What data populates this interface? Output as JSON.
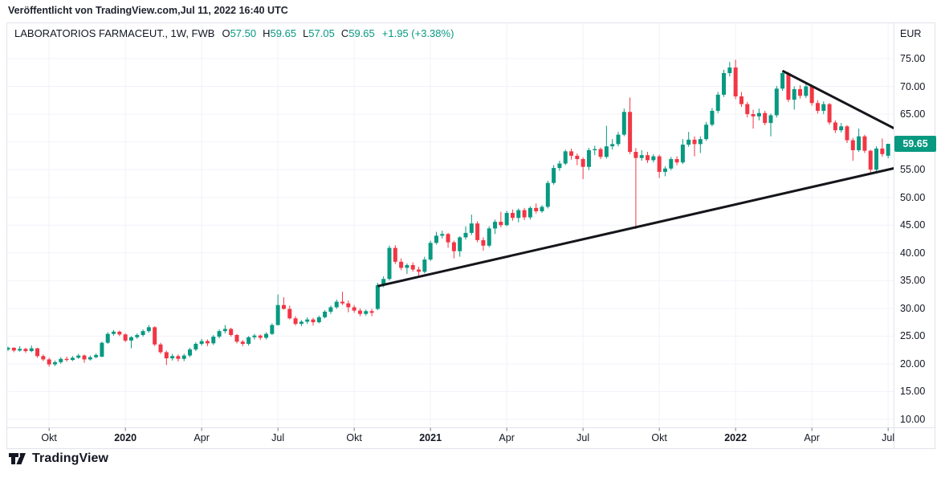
{
  "publisher": {
    "text": "Veröffentlicht von TradingView.com,Jul 11, 2022 16:40 UTC"
  },
  "chart": {
    "legend": {
      "title": "LABORATORIOS FARMACEUT., 1W, FWB",
      "items": [
        {
          "label": "O",
          "value": "57.50"
        },
        {
          "label": "H",
          "value": "59.65"
        },
        {
          "label": "L",
          "value": "57.05"
        },
        {
          "label": "C",
          "value": "59.65"
        }
      ],
      "change": "+1.95 (+3.38%)"
    },
    "price_axis": {
      "currency": "EUR",
      "last_price_label": "59.65",
      "last_price": 59.65,
      "ticks": [
        {
          "label": "75.00",
          "price": 75
        },
        {
          "label": "70.00",
          "price": 70
        },
        {
          "label": "65.00",
          "price": 65
        },
        {
          "label": "55.00",
          "price": 55
        },
        {
          "label": "50.00",
          "price": 50
        },
        {
          "label": "45.00",
          "price": 45
        },
        {
          "label": "40.00",
          "price": 40
        },
        {
          "label": "35.00",
          "price": 35
        },
        {
          "label": "30.00",
          "price": 30
        },
        {
          "label": "25.00",
          "price": 25
        },
        {
          "label": "20.00",
          "price": 20
        },
        {
          "label": "15.00",
          "price": 15
        },
        {
          "label": "10.00",
          "price": 10
        }
      ],
      "grid_prices": [
        75,
        70,
        65,
        60,
        55,
        50,
        45,
        40,
        35,
        30,
        25,
        20,
        15,
        10
      ]
    },
    "time_axis": {
      "labels": [
        {
          "index": 7,
          "label": "Okt",
          "bold": false
        },
        {
          "index": 20,
          "label": "2020",
          "bold": true
        },
        {
          "index": 33,
          "label": "Apr",
          "bold": false
        },
        {
          "index": 46,
          "label": "Jul",
          "bold": false
        },
        {
          "index": 59,
          "label": "Okt",
          "bold": false
        },
        {
          "index": 72,
          "label": "2021",
          "bold": true
        },
        {
          "index": 85,
          "label": "Apr",
          "bold": false
        },
        {
          "index": 98,
          "label": "Jul",
          "bold": false
        },
        {
          "index": 111,
          "label": "Okt",
          "bold": false
        },
        {
          "index": 124,
          "label": "2022",
          "bold": true
        },
        {
          "index": 137,
          "label": "Apr",
          "bold": false
        },
        {
          "index": 150,
          "label": "Jul",
          "bold": false
        }
      ]
    },
    "colors": {
      "up": "#089981",
      "down": "#f23645",
      "grid": "#f0f3fa",
      "border": "#e0e3eb",
      "tick": "#787b86",
      "trendline": "#15161b",
      "badge_bg": "#089981",
      "text": "#131722"
    }
  },
  "footer": {
    "brand": "TradingView",
    "logo": "tradingview-logo"
  },
  "chart_data": {
    "type": "candlestick",
    "title": "LABORATORIOS FARMACEUT., 1W, FWB",
    "symbol": "LABORATORIOS FARMACEUT.",
    "interval": "1W",
    "exchange": "FWB",
    "currency": "EUR",
    "ylim": [
      8.6,
      81.4
    ],
    "y_tick_step": 5,
    "grid": true,
    "last": {
      "open": 57.5,
      "high": 59.65,
      "low": 57.05,
      "close": 59.65,
      "change_abs": 1.95,
      "change_pct": 3.38
    },
    "ohlc_order": [
      "open",
      "high",
      "low",
      "close"
    ],
    "candles": [
      [
        22.6,
        23.1,
        22.3,
        22.9
      ],
      [
        22.9,
        23.0,
        22.1,
        22.4
      ],
      [
        22.4,
        23.2,
        22.2,
        22.7
      ],
      [
        22.7,
        22.9,
        22.0,
        22.3
      ],
      [
        22.3,
        23.3,
        22.1,
        22.8
      ],
      [
        22.8,
        22.9,
        21.1,
        21.4
      ],
      [
        21.4,
        21.7,
        20.5,
        20.8
      ],
      [
        20.8,
        21.1,
        19.5,
        19.9
      ],
      [
        19.9,
        20.6,
        19.6,
        20.3
      ],
      [
        20.3,
        21.2,
        20.0,
        20.9
      ],
      [
        20.9,
        21.3,
        20.4,
        20.7
      ],
      [
        20.7,
        21.4,
        20.5,
        21.1
      ],
      [
        21.1,
        21.8,
        20.9,
        21.5
      ],
      [
        21.5,
        21.7,
        20.2,
        20.8
      ],
      [
        20.8,
        21.5,
        20.6,
        21.2
      ],
      [
        21.2,
        21.9,
        21.0,
        21.6
      ],
      [
        21.3,
        24.0,
        21.2,
        23.8
      ],
      [
        23.8,
        25.7,
        23.6,
        25.4
      ],
      [
        25.4,
        26.1,
        25.1,
        25.8
      ],
      [
        25.8,
        26.0,
        25.0,
        25.3
      ],
      [
        25.3,
        25.5,
        23.9,
        24.2
      ],
      [
        24.2,
        25.0,
        22.8,
        24.8
      ],
      [
        24.8,
        25.5,
        24.5,
        25.2
      ],
      [
        25.2,
        26.2,
        24.9,
        25.9
      ],
      [
        25.9,
        27.0,
        25.6,
        26.6
      ],
      [
        26.6,
        26.8,
        23.2,
        23.5
      ],
      [
        23.5,
        23.8,
        21.8,
        22.1
      ],
      [
        22.1,
        22.4,
        19.8,
        21.0
      ],
      [
        21.0,
        21.8,
        20.6,
        21.4
      ],
      [
        21.4,
        21.7,
        20.4,
        20.9
      ],
      [
        20.9,
        21.8,
        20.5,
        21.5
      ],
      [
        21.5,
        22.9,
        21.2,
        22.6
      ],
      [
        22.6,
        23.9,
        22.3,
        23.6
      ],
      [
        23.6,
        24.5,
        23.3,
        24.1
      ],
      [
        24.1,
        24.4,
        23.2,
        23.7
      ],
      [
        23.7,
        25.2,
        23.4,
        24.9
      ],
      [
        24.9,
        26.2,
        24.6,
        25.9
      ],
      [
        25.9,
        27.0,
        25.5,
        26.3
      ],
      [
        26.3,
        26.5,
        24.9,
        25.2
      ],
      [
        25.2,
        25.4,
        23.7,
        24.0
      ],
      [
        24.0,
        24.3,
        23.2,
        23.6
      ],
      [
        23.6,
        25.0,
        23.3,
        24.8
      ],
      [
        24.8,
        25.4,
        24.4,
        25.1
      ],
      [
        25.1,
        25.3,
        24.3,
        24.7
      ],
      [
        24.7,
        25.7,
        24.4,
        25.4
      ],
      [
        25.4,
        27.3,
        25.2,
        27.0
      ],
      [
        27.0,
        32.5,
        26.9,
        30.6
      ],
      [
        30.6,
        32.0,
        29.8,
        29.9
      ],
      [
        29.9,
        30.5,
        28.0,
        28.2
      ],
      [
        28.2,
        28.6,
        26.9,
        27.2
      ],
      [
        27.2,
        27.9,
        26.8,
        27.6
      ],
      [
        27.6,
        28.4,
        27.2,
        28.0
      ],
      [
        28.0,
        28.3,
        26.9,
        27.5
      ],
      [
        27.5,
        28.7,
        27.3,
        28.4
      ],
      [
        28.4,
        29.7,
        28.2,
        29.4
      ],
      [
        29.4,
        30.5,
        29.0,
        30.2
      ],
      [
        30.2,
        31.6,
        29.9,
        31.2
      ],
      [
        31.2,
        33.0,
        30.6,
        30.9
      ],
      [
        30.9,
        31.4,
        29.3,
        30.2
      ],
      [
        30.2,
        30.6,
        29.2,
        29.6
      ],
      [
        29.6,
        30.0,
        28.6,
        29.0
      ],
      [
        29.0,
        29.8,
        28.7,
        29.5
      ],
      [
        29.5,
        29.9,
        28.6,
        29.2
      ],
      [
        29.9,
        34.6,
        29.7,
        34.2
      ],
      [
        34.2,
        35.8,
        33.8,
        35.3
      ],
      [
        35.3,
        41.3,
        35.0,
        40.9
      ],
      [
        40.9,
        41.4,
        38.0,
        38.4
      ],
      [
        38.4,
        39.0,
        36.9,
        37.3
      ],
      [
        37.3,
        38.1,
        36.2,
        37.8
      ],
      [
        37.8,
        38.3,
        36.6,
        37.0
      ],
      [
        37.0,
        37.5,
        35.9,
        36.6
      ],
      [
        36.6,
        39.3,
        36.3,
        38.8
      ],
      [
        38.8,
        42.2,
        38.5,
        41.8
      ],
      [
        41.8,
        43.8,
        41.5,
        43.1
      ],
      [
        43.1,
        44.0,
        42.6,
        43.4
      ],
      [
        43.4,
        43.6,
        40.9,
        41.9
      ],
      [
        41.9,
        42.2,
        39.0,
        40.3
      ],
      [
        40.3,
        43.0,
        39.3,
        42.8
      ],
      [
        42.8,
        44.8,
        42.4,
        43.6
      ],
      [
        43.6,
        46.9,
        43.2,
        45.3
      ],
      [
        45.3,
        45.7,
        41.9,
        42.3
      ],
      [
        42.3,
        42.8,
        40.4,
        41.3
      ],
      [
        41.3,
        44.8,
        41.0,
        44.4
      ],
      [
        44.4,
        46.0,
        43.4,
        45.6
      ],
      [
        45.6,
        47.4,
        44.6,
        45.0
      ],
      [
        45.0,
        47.6,
        44.8,
        47.2
      ],
      [
        47.2,
        47.8,
        45.8,
        46.3
      ],
      [
        46.3,
        48.0,
        45.5,
        47.7
      ],
      [
        47.7,
        48.1,
        45.9,
        46.4
      ],
      [
        46.4,
        48.4,
        46.0,
        48.1
      ],
      [
        48.1,
        48.9,
        47.1,
        47.5
      ],
      [
        47.5,
        48.6,
        47.2,
        48.3
      ],
      [
        48.3,
        53.0,
        48.0,
        52.6
      ],
      [
        52.6,
        55.8,
        52.3,
        55.3
      ],
      [
        55.3,
        56.6,
        54.8,
        56.1
      ],
      [
        56.1,
        58.6,
        55.8,
        58.3
      ],
      [
        58.3,
        58.8,
        56.8,
        57.5
      ],
      [
        57.5,
        57.9,
        55.8,
        56.9
      ],
      [
        56.9,
        57.2,
        53.3,
        55.5
      ],
      [
        55.5,
        58.9,
        54.9,
        58.5
      ],
      [
        58.5,
        59.3,
        57.6,
        58.7
      ],
      [
        58.7,
        59.0,
        56.9,
        57.3
      ],
      [
        57.3,
        62.9,
        57.0,
        59.2
      ],
      [
        59.2,
        60.5,
        58.6,
        59.6
      ],
      [
        59.6,
        61.8,
        59.2,
        61.3
      ],
      [
        61.3,
        66.0,
        61.0,
        65.4
      ],
      [
        65.4,
        68.0,
        57.8,
        58.2
      ],
      [
        58.2,
        58.9,
        44.3,
        57.1
      ],
      [
        57.1,
        58.5,
        56.6,
        57.6
      ],
      [
        57.6,
        58.2,
        56.2,
        56.7
      ],
      [
        56.7,
        57.8,
        56.3,
        57.4
      ],
      [
        57.4,
        57.7,
        53.5,
        54.6
      ],
      [
        54.6,
        55.6,
        53.8,
        55.2
      ],
      [
        55.2,
        57.3,
        54.9,
        56.9
      ],
      [
        56.9,
        57.4,
        55.8,
        56.3
      ],
      [
        56.3,
        60.5,
        56.0,
        59.5
      ],
      [
        59.5,
        61.8,
        59.1,
        60.4
      ],
      [
        60.4,
        61.0,
        57.4,
        59.6
      ],
      [
        59.6,
        61.0,
        58.0,
        60.5
      ],
      [
        60.5,
        63.6,
        60.2,
        63.1
      ],
      [
        63.1,
        66.1,
        62.8,
        65.6
      ],
      [
        65.6,
        69.0,
        65.2,
        68.5
      ],
      [
        68.5,
        73.0,
        68.1,
        72.4
      ],
      [
        72.4,
        74.4,
        71.8,
        73.4
      ],
      [
        73.4,
        74.8,
        67.7,
        68.2
      ],
      [
        68.2,
        69.0,
        66.3,
        66.8
      ],
      [
        66.8,
        67.2,
        64.4,
        65.0
      ],
      [
        65.0,
        65.8,
        62.4,
        64.6
      ],
      [
        64.6,
        66.0,
        63.9,
        65.2
      ],
      [
        65.2,
        65.6,
        63.0,
        63.4
      ],
      [
        63.4,
        65.1,
        61.0,
        64.8
      ],
      [
        64.8,
        70.1,
        64.4,
        69.6
      ],
      [
        69.6,
        72.8,
        69.2,
        72.4
      ],
      [
        72.4,
        72.6,
        67.2,
        67.6
      ],
      [
        67.6,
        70.0,
        65.8,
        69.5
      ],
      [
        69.5,
        70.2,
        67.8,
        68.3
      ],
      [
        68.3,
        70.6,
        67.9,
        70.0
      ],
      [
        70.0,
        70.3,
        66.5,
        67.0
      ],
      [
        67.0,
        67.5,
        65.1,
        65.6
      ],
      [
        65.6,
        67.3,
        65.0,
        66.8
      ],
      [
        66.8,
        67.0,
        63.1,
        63.5
      ],
      [
        63.5,
        63.9,
        61.6,
        62.1
      ],
      [
        62.1,
        63.4,
        61.7,
        62.8
      ],
      [
        62.8,
        63.0,
        59.8,
        60.3
      ],
      [
        60.3,
        60.7,
        56.6,
        58.5
      ],
      [
        58.5,
        62.4,
        58.2,
        61.0
      ],
      [
        61.0,
        61.3,
        58.0,
        58.4
      ],
      [
        58.4,
        58.6,
        54.2,
        55.0
      ],
      [
        55.0,
        59.2,
        54.7,
        58.8
      ],
      [
        58.8,
        60.6,
        57.3,
        57.8
      ],
      [
        57.5,
        59.65,
        57.05,
        59.65
      ]
    ],
    "trendlines": [
      {
        "name": "rising-support-trendline",
        "i1": 63,
        "p1": 34.0,
        "i2": 151,
        "p2": 55.25
      },
      {
        "name": "falling-resistance-trendline",
        "i1": 132,
        "p1": 72.8,
        "i2": 151,
        "p2": 62.45
      }
    ]
  }
}
